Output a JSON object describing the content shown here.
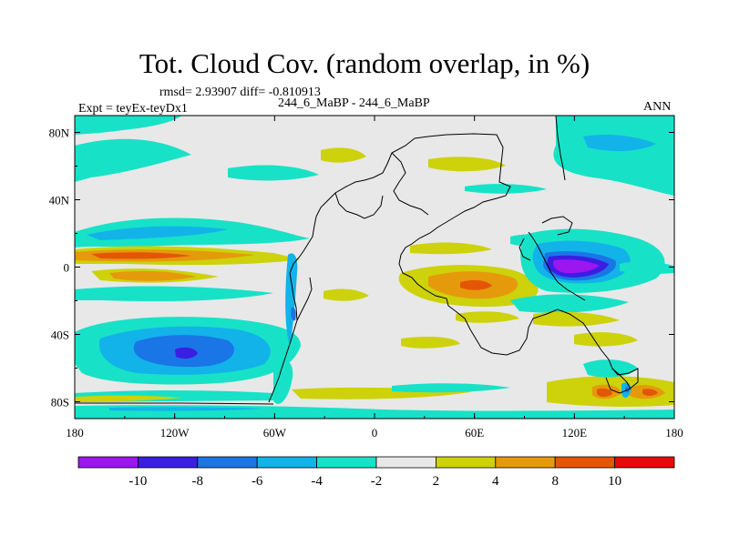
{
  "title": "Tot. Cloud Cov. (random overlap, in %)",
  "stats_text": "rmsd= 2.93907 diff= -0.810913",
  "subtitle": "244_6_MaBP - 244_6_MaBP",
  "left_label": "Expt = teyEx-teyDx1",
  "right_label": "ANN",
  "map": {
    "lon_range": [
      -180,
      180
    ],
    "lat_range": [
      -90,
      90
    ],
    "x_ticks": [
      {
        "value": -180,
        "label": "180"
      },
      {
        "value": -120,
        "label": "120W"
      },
      {
        "value": -60,
        "label": "60W"
      },
      {
        "value": 0,
        "label": "0"
      },
      {
        "value": 60,
        "label": "60E"
      },
      {
        "value": 120,
        "label": "120E"
      },
      {
        "value": 180,
        "label": "180"
      }
    ],
    "y_ticks": [
      {
        "value": 80,
        "label": "80N"
      },
      {
        "value": 40,
        "label": "40N"
      },
      {
        "value": 0,
        "label": "0"
      },
      {
        "value": -40,
        "label": "40S"
      },
      {
        "value": -80,
        "label": "80S"
      }
    ],
    "background_color": "#e8e8e8"
  },
  "colorbar": {
    "colors": [
      "#9c16f0",
      "#3a1ee2",
      "#1a75e6",
      "#12b3e9",
      "#17e2c7",
      "#e8e8e8",
      "#cdd20a",
      "#e59a0c",
      "#e45606",
      "#e60a0a"
    ],
    "labels": [
      "-10",
      "-8",
      "-6",
      "-4",
      "-2",
      "2",
      "4",
      "8",
      "10"
    ]
  }
}
